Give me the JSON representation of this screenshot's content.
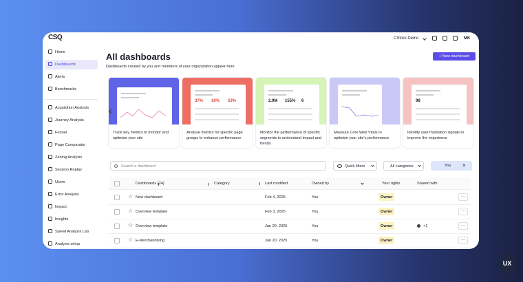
{
  "header": {
    "logo": "CSQ",
    "workspace": "CStore Demo",
    "user": "MK"
  },
  "sidebar": {
    "items": [
      "Home",
      "Dashboards",
      "Alerts",
      "Benchmarks",
      "Acquisition Analysis",
      "Journey Analysis",
      "Funnel",
      "Page Comparator",
      "Zoning Analysis",
      "Session Replay",
      "Users",
      "Error Analysis",
      "Impact",
      "Insights",
      "Speed Analysis Lab",
      "Analysis setup"
    ]
  },
  "main": {
    "title": "All dashboards",
    "subtitle": "Dashboards created by you and members of your organization appear here.",
    "new_button": "+ New dashboard"
  },
  "cards": [
    {
      "caption": "Track key metrics to monitor and optimise your site"
    },
    {
      "caption": "Analyse metrics for specific page groups to enhance performance",
      "metrics": [
        "37%",
        "10%",
        "53%"
      ]
    },
    {
      "caption": "Monitor the performance of specific segments to understand impact and trends",
      "metrics": [
        "2.9M",
        "155%",
        "6"
      ]
    },
    {
      "caption": "Measure Core Web Vitals to optimise your site's performance"
    },
    {
      "caption": "Identify user frustration signals to improve the experience",
      "metrics": [
        "98"
      ]
    }
  ],
  "filters": {
    "search_placeholder": "Search a dashboard",
    "quick_filters": "Quick filters",
    "categories": "All categories",
    "owner_chip": "You"
  },
  "table": {
    "headers": [
      "Dashboards (24)",
      "Category",
      "Last modified",
      "Owned by",
      "Your rights",
      "Shared with"
    ],
    "rows": [
      {
        "name": "New dashboard",
        "last_modified": "Feb 4, 2025",
        "owned_by": "You",
        "rights": "Owner"
      },
      {
        "name": "Overview template",
        "last_modified": "Feb 3, 2025",
        "owned_by": "You",
        "rights": "Owner"
      },
      {
        "name": "Overview template",
        "last_modified": "Jan 20, 2025",
        "owned_by": "You",
        "rights": "Owner",
        "shared": "+1"
      },
      {
        "name": "E-Merchandising",
        "last_modified": "Jan 20, 2025",
        "owned_by": "You",
        "rights": "Owner"
      }
    ]
  },
  "badge": "UX"
}
